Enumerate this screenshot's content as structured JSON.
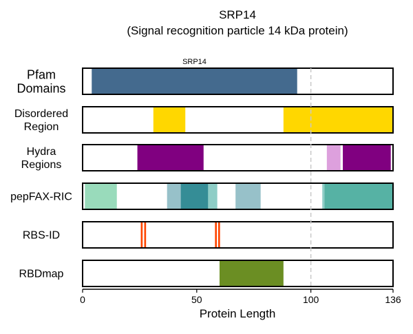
{
  "chart_data": {
    "type": "bar",
    "title": "SRP14",
    "subtitle": "(Signal recognition particle 14 kDa protein)",
    "xlabel": "Protein Length",
    "xlim": [
      0,
      136
    ],
    "xticks": [
      0,
      50,
      100,
      136
    ],
    "reference_line": 100,
    "grid": false,
    "tracks": [
      {
        "label": "Pfam\nDomains",
        "segments": [
          {
            "start": 4,
            "end": 94,
            "color": "#446a8e",
            "label": "SRP14"
          }
        ]
      },
      {
        "label": "Disordered\nRegion",
        "segments": [
          {
            "start": 31,
            "end": 45,
            "color": "#ffd700"
          },
          {
            "start": 88,
            "end": 136,
            "color": "#ffd700"
          }
        ]
      },
      {
        "label": "Hydra\nRegions",
        "segments": [
          {
            "start": 24,
            "end": 53,
            "color": "#800080"
          },
          {
            "start": 107,
            "end": 113,
            "color": "#dda0dd"
          },
          {
            "start": 114,
            "end": 135,
            "color": "#800080"
          }
        ]
      },
      {
        "label": "pepFAX-RIC",
        "segments": [
          {
            "start": 1,
            "end": 15,
            "color": "#99dbbb"
          },
          {
            "start": 37,
            "end": 43,
            "color": "#97c1c9"
          },
          {
            "start": 43,
            "end": 55,
            "color": "#358d96"
          },
          {
            "start": 55,
            "end": 59,
            "color": "#8ecdc6"
          },
          {
            "start": 67,
            "end": 78,
            "color": "#97c1c9"
          },
          {
            "start": 105,
            "end": 106,
            "color": "#8ecdc6"
          },
          {
            "start": 106,
            "end": 136,
            "color": "#56b2a4"
          }
        ]
      },
      {
        "label": "RBS-ID",
        "segments": [
          {
            "start": 25.5,
            "end": 26.3,
            "color": "#ff4500"
          },
          {
            "start": 27.0,
            "end": 27.8,
            "color": "#ff4500"
          },
          {
            "start": 58.0,
            "end": 58.8,
            "color": "#ff4500"
          },
          {
            "start": 59.4,
            "end": 60.2,
            "color": "#ff4500"
          }
        ]
      },
      {
        "label": "RBDmap",
        "segments": [
          {
            "start": 60,
            "end": 88,
            "color": "#6b8e23"
          }
        ]
      }
    ]
  }
}
